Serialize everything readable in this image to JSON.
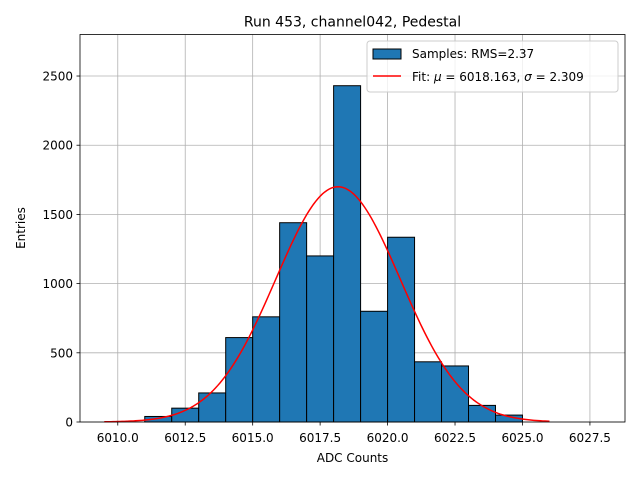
{
  "chart_data": {
    "type": "bar",
    "title": "Run 453, channel042, Pedestal",
    "xlabel": "ADC Counts",
    "ylabel": "Entries",
    "xlim": [
      6008.6,
      6028.8
    ],
    "ylim": [
      0,
      2800
    ],
    "grid": true,
    "legend_position": "top-right",
    "x_ticks": [
      6010.0,
      6012.5,
      6015.0,
      6017.5,
      6020.0,
      6022.5,
      6025.0,
      6027.5
    ],
    "x_tick_labels": [
      "6010.0",
      "6012.5",
      "6015.0",
      "6017.5",
      "6020.0",
      "6022.5",
      "6025.0",
      "6027.5"
    ],
    "y_ticks": [
      0,
      500,
      1000,
      1500,
      2000,
      2500
    ],
    "y_tick_labels": [
      "0",
      "500",
      "1000",
      "1500",
      "2000",
      "2500"
    ],
    "histogram": {
      "name": "Samples: RMS=2.37",
      "color": "#1f77b4",
      "bins": [
        {
          "x0": 6011.0,
          "x1": 6012.0,
          "value": 40
        },
        {
          "x0": 6012.0,
          "x1": 6013.0,
          "value": 100
        },
        {
          "x0": 6013.0,
          "x1": 6014.0,
          "value": 210
        },
        {
          "x0": 6014.0,
          "x1": 6015.0,
          "value": 610
        },
        {
          "x0": 6015.0,
          "x1": 6016.0,
          "value": 760
        },
        {
          "x0": 6016.0,
          "x1": 6017.0,
          "value": 1440
        },
        {
          "x0": 6017.0,
          "x1": 6018.0,
          "value": 1200
        },
        {
          "x0": 6018.0,
          "x1": 6019.0,
          "value": 2430
        },
        {
          "x0": 6019.0,
          "x1": 6020.0,
          "value": 800
        },
        {
          "x0": 6020.0,
          "x1": 6021.0,
          "value": 1335
        },
        {
          "x0": 6021.0,
          "x1": 6022.0,
          "value": 435
        },
        {
          "x0": 6022.0,
          "x1": 6023.0,
          "value": 405
        },
        {
          "x0": 6023.0,
          "x1": 6024.0,
          "value": 120
        },
        {
          "x0": 6024.0,
          "x1": 6025.0,
          "value": 50
        }
      ]
    },
    "fit": {
      "name_prefix": "Fit: ",
      "mu_symbol": "μ",
      "mu_value": " = 6018.163, ",
      "sigma_symbol": "σ",
      "sigma_value": " = 2.309",
      "color": "#ff0000",
      "mu": 6018.163,
      "sigma": 2.309,
      "amplitude": 1700,
      "x_range": [
        6009.5,
        6026.0
      ]
    }
  }
}
